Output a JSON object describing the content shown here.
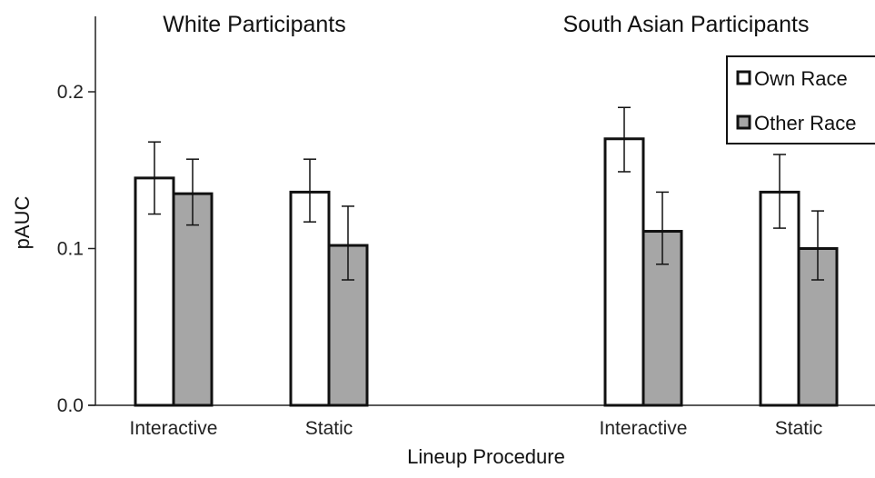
{
  "chart_data": {
    "type": "bar",
    "xlabel": "Lineup Procedure",
    "ylabel": "pAUC",
    "ylim": [
      0,
      0.24
    ],
    "yticks": [
      "0.0",
      "0.1",
      "0.2"
    ],
    "ytick_values": [
      0.0,
      0.1,
      0.2
    ],
    "grid": false,
    "legend_position": "top-right",
    "series_colors": [
      "#ffffff",
      "#a6a6a6"
    ],
    "series": [
      {
        "name": "Own Race"
      },
      {
        "name": "Other Race"
      }
    ],
    "panels": [
      {
        "title": "White Participants",
        "categories": [
          "Interactive",
          "Static"
        ],
        "values": {
          "Own Race": [
            0.145,
            0.136
          ],
          "Other Race": [
            0.135,
            0.102
          ]
        },
        "error_low": {
          "Own Race": [
            0.122,
            0.117
          ],
          "Other Race": [
            0.115,
            0.08
          ]
        },
        "error_high": {
          "Own Race": [
            0.168,
            0.157
          ],
          "Other Race": [
            0.157,
            0.127
          ]
        }
      },
      {
        "title": "South Asian Participants",
        "categories": [
          "Interactive",
          "Static"
        ],
        "values": {
          "Own Race": [
            0.17,
            0.136
          ],
          "Other Race": [
            0.111,
            0.1
          ]
        },
        "error_low": {
          "Own Race": [
            0.149,
            0.113
          ],
          "Other Race": [
            0.09,
            0.08
          ]
        },
        "error_high": {
          "Own Race": [
            0.19,
            0.16
          ],
          "Other Race": [
            0.136,
            0.124
          ]
        }
      }
    ]
  }
}
